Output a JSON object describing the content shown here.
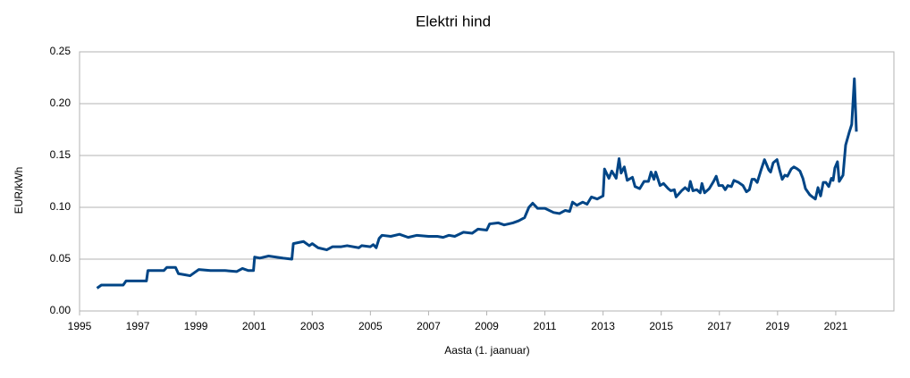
{
  "chart_data": {
    "type": "line",
    "title": "Elektri hind",
    "x_label": "Aasta (1. jaanuar)",
    "y_label": "EUR/kWh",
    "color": "#004586",
    "grid": true,
    "xlim": [
      1995,
      2023
    ],
    "xticks": [
      1995,
      1997,
      1999,
      2001,
      2003,
      2005,
      2007,
      2009,
      2011,
      2013,
      2015,
      2017,
      2019,
      2021
    ],
    "ylim": [
      0,
      0.25
    ],
    "yticks": [
      {
        "value": 0,
        "label": "0.00"
      },
      {
        "value": 0.05,
        "label": "0.05"
      },
      {
        "value": 0.1,
        "label": "0.10"
      },
      {
        "value": 0.15,
        "label": "0.15"
      },
      {
        "value": 0.2,
        "label": "0.20"
      },
      {
        "value": 0.25,
        "label": "0.25"
      }
    ],
    "x": [
      1995.6,
      1995.75,
      1996.5,
      1996.6,
      1997.3,
      1997.35,
      1997.9,
      1998.0,
      1998.3,
      1998.4,
      1998.6,
      1998.8,
      1998.95,
      1999.1,
      1999.5,
      2000.0,
      2000.4,
      2000.6,
      2000.8,
      2000.98,
      2001.02,
      2001.2,
      2001.5,
      2002.0,
      2002.3,
      2002.35,
      2002.7,
      2002.9,
      2003.0,
      2003.2,
      2003.5,
      2003.7,
      2004.0,
      2004.2,
      2004.6,
      2004.7,
      2005.0,
      2005.1,
      2005.2,
      2005.3,
      2005.4,
      2005.7,
      2006.0,
      2006.3,
      2006.6,
      2007.0,
      2007.3,
      2007.5,
      2007.7,
      2007.9,
      2008.2,
      2008.5,
      2008.7,
      2009.0,
      2009.1,
      2009.4,
      2009.6,
      2009.9,
      2010.1,
      2010.3,
      2010.45,
      2010.58,
      2010.75,
      2011.0,
      2011.3,
      2011.5,
      2011.7,
      2011.85,
      2011.95,
      2012.1,
      2012.3,
      2012.45,
      2012.6,
      2012.8,
      2013.0,
      2013.05,
      2013.2,
      2013.3,
      2013.45,
      2013.55,
      2013.62,
      2013.73,
      2013.83,
      2014.01,
      2014.1,
      2014.26,
      2014.41,
      2014.56,
      2014.65,
      2014.75,
      2014.81,
      2014.96,
      2015.08,
      2015.24,
      2015.33,
      2015.45,
      2015.51,
      2015.7,
      2015.82,
      2015.94,
      2016.0,
      2016.09,
      2016.22,
      2016.34,
      2016.4,
      2016.49,
      2016.65,
      2016.8,
      2016.89,
      2016.98,
      2017.11,
      2017.2,
      2017.29,
      2017.41,
      2017.5,
      2017.66,
      2017.81,
      2017.93,
      2018.03,
      2018.12,
      2018.21,
      2018.3,
      2018.42,
      2018.55,
      2018.7,
      2018.76,
      2018.85,
      2018.98,
      2019.07,
      2019.16,
      2019.25,
      2019.34,
      2019.47,
      2019.56,
      2019.68,
      2019.77,
      2019.87,
      2019.96,
      2020.11,
      2020.2,
      2020.3,
      2020.39,
      2020.48,
      2020.57,
      2020.66,
      2020.76,
      2020.85,
      2020.91,
      2020.97,
      2021.06,
      2021.12,
      2021.25,
      2021.34,
      2021.46,
      2021.55,
      2021.64,
      2021.71
    ],
    "values": [
      0.022,
      0.025,
      0.025,
      0.029,
      0.029,
      0.039,
      0.039,
      0.042,
      0.042,
      0.036,
      0.035,
      0.034,
      0.037,
      0.04,
      0.039,
      0.039,
      0.038,
      0.041,
      0.039,
      0.039,
      0.052,
      0.051,
      0.053,
      0.051,
      0.05,
      0.065,
      0.067,
      0.063,
      0.065,
      0.061,
      0.059,
      0.062,
      0.062,
      0.063,
      0.061,
      0.063,
      0.062,
      0.064,
      0.061,
      0.07,
      0.073,
      0.072,
      0.074,
      0.071,
      0.073,
      0.072,
      0.072,
      0.071,
      0.073,
      0.072,
      0.076,
      0.075,
      0.079,
      0.078,
      0.084,
      0.085,
      0.083,
      0.085,
      0.087,
      0.09,
      0.1,
      0.104,
      0.099,
      0.099,
      0.095,
      0.094,
      0.097,
      0.096,
      0.105,
      0.102,
      0.105,
      0.103,
      0.11,
      0.108,
      0.111,
      0.137,
      0.128,
      0.135,
      0.128,
      0.147,
      0.133,
      0.139,
      0.126,
      0.129,
      0.12,
      0.118,
      0.125,
      0.125,
      0.134,
      0.127,
      0.134,
      0.121,
      0.123,
      0.118,
      0.116,
      0.117,
      0.11,
      0.116,
      0.119,
      0.116,
      0.125,
      0.116,
      0.117,
      0.114,
      0.123,
      0.114,
      0.118,
      0.125,
      0.13,
      0.121,
      0.121,
      0.117,
      0.121,
      0.12,
      0.126,
      0.124,
      0.121,
      0.115,
      0.117,
      0.127,
      0.127,
      0.124,
      0.135,
      0.146,
      0.136,
      0.134,
      0.143,
      0.146,
      0.136,
      0.127,
      0.131,
      0.13,
      0.137,
      0.139,
      0.137,
      0.135,
      0.128,
      0.118,
      0.112,
      0.11,
      0.108,
      0.119,
      0.111,
      0.124,
      0.124,
      0.12,
      0.128,
      0.126,
      0.138,
      0.144,
      0.125,
      0.131,
      0.16,
      0.172,
      0.18,
      0.224,
      0.173
    ]
  }
}
